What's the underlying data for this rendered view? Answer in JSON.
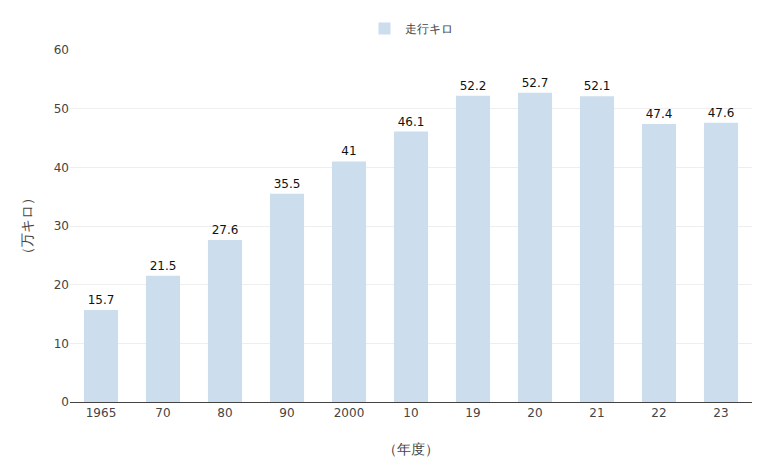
{
  "chart_data": {
    "type": "bar",
    "categories": [
      "1965",
      "70",
      "80",
      "90",
      "2000",
      "10",
      "19",
      "20",
      "21",
      "22",
      "23"
    ],
    "series": [
      {
        "name": "走行キロ",
        "color": "#ccdded",
        "values": [
          15.7,
          21.5,
          27.6,
          35.5,
          41.0,
          46.1,
          52.2,
          52.7,
          52.1,
          47.4,
          47.6
        ]
      }
    ],
    "xlabel": "（年度）",
    "ylabel": "（万キロ）",
    "ylim": [
      0,
      60
    ],
    "yticks": [
      0,
      10,
      20,
      30,
      40,
      50,
      60
    ],
    "grid": true,
    "legend": "upper center",
    "data_labels": true
  }
}
